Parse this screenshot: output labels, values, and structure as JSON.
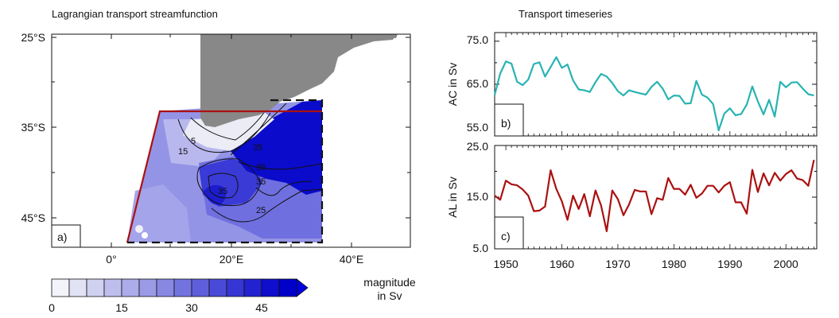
{
  "map": {
    "title": "Lagrangian transport streamfunction",
    "panel_label": "a)",
    "lat_labels": [
      "25°S",
      "35°S",
      "45°S"
    ],
    "lon_labels": [
      "0°",
      "20°E",
      "40°E"
    ],
    "contour_labels": [
      "5",
      "15",
      "35",
      "35",
      "35",
      "25",
      "35"
    ],
    "land_color": "#888888",
    "box_color": "#aa1111"
  },
  "colorbar": {
    "label_line1": "magnitude",
    "label_line2": "in Sv",
    "tick_labels": [
      "0",
      "15",
      "30",
      "45"
    ],
    "levels": [
      "#f3f3fa",
      "#e2e2f5",
      "#d0d0f1",
      "#bebeee",
      "#acacea",
      "#9a9ae7",
      "#8888e3",
      "#7373e0",
      "#5f5fdc",
      "#4a4ad8",
      "#3636d4",
      "#2222d0",
      "#0e0ecc",
      "#0000c8"
    ]
  },
  "chart_data": [
    {
      "type": "line",
      "title": "Transport timeseries",
      "panel_label": "b)",
      "ylabel": "AC in Sv",
      "ylim": [
        53,
        77
      ],
      "yticks": [
        "75.0",
        "65.0",
        "55.0"
      ],
      "color": "#2ab3b3",
      "x": [
        1948,
        1949,
        1950,
        1951,
        1952,
        1953,
        1954,
        1955,
        1956,
        1957,
        1958,
        1959,
        1960,
        1961,
        1962,
        1963,
        1964,
        1965,
        1966,
        1967,
        1968,
        1969,
        1970,
        1971,
        1972,
        1973,
        1974,
        1975,
        1976,
        1977,
        1978,
        1979,
        1980,
        1981,
        1982,
        1983,
        1984,
        1985,
        1986,
        1987,
        1988,
        1989,
        1990,
        1991,
        1992,
        1993,
        1994,
        1995,
        1996,
        1997,
        1998,
        1999,
        2000,
        2001,
        2002,
        2003,
        2004,
        2005
      ],
      "values": [
        62.5,
        67.5,
        70.3,
        69.8,
        65.6,
        64.8,
        66.1,
        69.7,
        70.1,
        66.8,
        69.0,
        71.3,
        68.8,
        69.6,
        65.9,
        63.8,
        63.6,
        63.2,
        65.5,
        67.4,
        66.8,
        65.3,
        63.4,
        62.4,
        63.6,
        63.2,
        62.9,
        62.6,
        64.4,
        65.6,
        64.0,
        61.5,
        62.4,
        62.3,
        60.5,
        60.6,
        65.8,
        62.6,
        61.9,
        60.4,
        54.3,
        58.2,
        59.4,
        57.8,
        58.1,
        60.3,
        64.5,
        61.0,
        58.0,
        61.4,
        57.5,
        65.6,
        64.3,
        65.4,
        65.5,
        64.0,
        62.7,
        62.4
      ]
    },
    {
      "type": "line",
      "panel_label": "c)",
      "ylabel": "AL in Sv",
      "ylim": [
        5,
        25
      ],
      "yticks": [
        "25.0",
        "15.0",
        "5.0"
      ],
      "color": "#aa1111",
      "x": [
        1948,
        1949,
        1950,
        1951,
        1952,
        1953,
        1954,
        1955,
        1956,
        1957,
        1958,
        1959,
        1960,
        1961,
        1962,
        1963,
        1964,
        1965,
        1966,
        1967,
        1968,
        1969,
        1970,
        1971,
        1972,
        1973,
        1974,
        1975,
        1976,
        1977,
        1978,
        1979,
        1980,
        1981,
        1982,
        1983,
        1984,
        1985,
        1986,
        1987,
        1988,
        1989,
        1990,
        1991,
        1992,
        1993,
        1994,
        1995,
        1996,
        1997,
        1998,
        1999,
        2000,
        2001,
        2002,
        2003,
        2004,
        2005
      ],
      "values": [
        15.3,
        14.5,
        18.2,
        17.5,
        17.3,
        16.5,
        15.3,
        12.3,
        12.4,
        13.2,
        20.2,
        16.6,
        14.2,
        10.6,
        15.3,
        12.7,
        15.6,
        11.3,
        16.3,
        13.4,
        8.4,
        16.3,
        14.6,
        11.5,
        13.6,
        16.4,
        16.1,
        16.1,
        11.7,
        14.8,
        14.5,
        18.7,
        16.6,
        16.6,
        15.5,
        17.4,
        14.9,
        15.7,
        17.2,
        17.2,
        15.9,
        17.2,
        17.9,
        14.0,
        14.0,
        11.8,
        20.3,
        16.0,
        19.6,
        17.3,
        19.7,
        18.2,
        19.5,
        20.2,
        18.6,
        18.3,
        17.2,
        22.2
      ],
      "xticks": [
        "1950",
        "1960",
        "1970",
        "1980",
        "1990",
        "2000"
      ],
      "xlim": [
        1948,
        2005.5
      ]
    }
  ]
}
